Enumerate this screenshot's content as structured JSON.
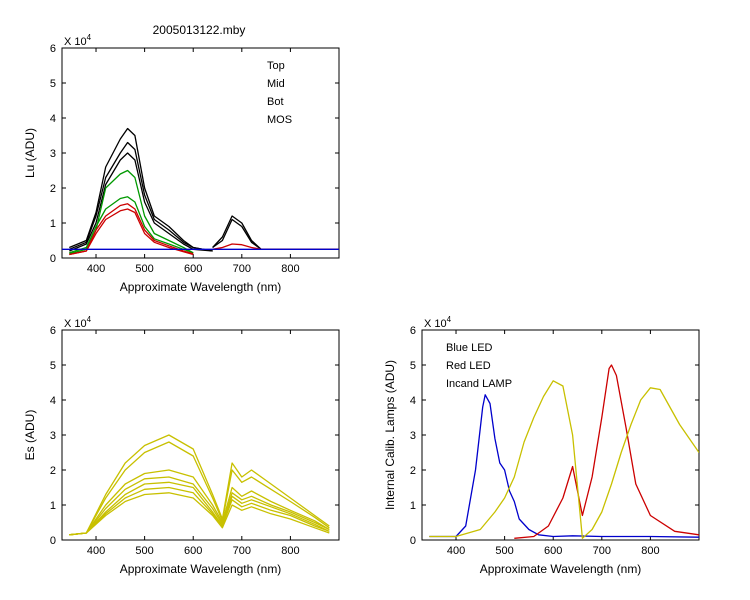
{
  "page_title": "2005013122.mby",
  "chart_data": [
    {
      "type": "line",
      "id": "lu",
      "xlabel": "Approximate Wavelength (nm)",
      "ylabel": "Lu (ADU)",
      "exponent_label": "X 10",
      "exponent_power": "4",
      "xlim": [
        330,
        900
      ],
      "ylim": [
        0,
        6
      ],
      "xticks": [
        400,
        500,
        600,
        700,
        800
      ],
      "yticks": [
        0,
        1,
        2,
        3,
        4,
        5,
        6
      ],
      "legend_position": "top-right",
      "legend": [
        {
          "label": "Top",
          "color": "#000000"
        },
        {
          "label": "Mid",
          "color": "#cc0000"
        },
        {
          "label": "Bot",
          "color": "#009900"
        },
        {
          "label": "MOS",
          "color": "#0000cc"
        }
      ],
      "series": [
        {
          "color": "#000000",
          "x": [
            345,
            380,
            400,
            420,
            450,
            465,
            480,
            500,
            520,
            550,
            580,
            600,
            640
          ],
          "y": [
            0.3,
            0.5,
            1.3,
            2.6,
            3.4,
            3.7,
            3.5,
            2.0,
            1.2,
            0.9,
            0.5,
            0.3,
            0.2
          ]
        },
        {
          "color": "#000000",
          "x": [
            345,
            380,
            400,
            420,
            450,
            465,
            480,
            500,
            520,
            550,
            580,
            600,
            640
          ],
          "y": [
            0.25,
            0.45,
            1.2,
            2.3,
            3.0,
            3.3,
            3.1,
            1.8,
            1.1,
            0.8,
            0.45,
            0.3,
            0.2
          ]
        },
        {
          "color": "#000000",
          "x": [
            345,
            380,
            400,
            420,
            450,
            465,
            480,
            500,
            520,
            550,
            580,
            600,
            640
          ],
          "y": [
            0.2,
            0.4,
            1.0,
            2.1,
            2.8,
            3.0,
            2.8,
            1.6,
            1.0,
            0.7,
            0.4,
            0.25,
            0.2
          ]
        },
        {
          "color": "#000000",
          "x": [
            640,
            660,
            680,
            700,
            720,
            740,
            900
          ],
          "y": [
            0.3,
            0.6,
            1.2,
            1.0,
            0.5,
            0.25,
            0.25
          ]
        },
        {
          "color": "#000000",
          "x": [
            640,
            660,
            680,
            700,
            720,
            740,
            900
          ],
          "y": [
            0.3,
            0.5,
            1.1,
            0.9,
            0.45,
            0.25,
            0.25
          ]
        },
        {
          "color": "#009900",
          "x": [
            345,
            380,
            400,
            420,
            450,
            465,
            480,
            500,
            520,
            550,
            580,
            600
          ],
          "y": [
            0.15,
            0.3,
            0.9,
            1.4,
            1.7,
            1.75,
            1.6,
            0.9,
            0.55,
            0.4,
            0.25,
            0.15
          ]
        },
        {
          "color": "#009900",
          "x": [
            345,
            380,
            400,
            420,
            450,
            465,
            480,
            500,
            520,
            550,
            580,
            600
          ],
          "y": [
            0.12,
            0.25,
            0.8,
            2.0,
            2.4,
            2.5,
            2.3,
            1.2,
            0.7,
            0.5,
            0.3,
            0.15
          ]
        },
        {
          "color": "#cc0000",
          "x": [
            345,
            380,
            400,
            420,
            450,
            465,
            480,
            500,
            520,
            550,
            580,
            600
          ],
          "y": [
            0.1,
            0.2,
            0.8,
            1.2,
            1.5,
            1.55,
            1.4,
            0.8,
            0.5,
            0.35,
            0.2,
            0.12
          ]
        },
        {
          "color": "#cc0000",
          "x": [
            345,
            380,
            400,
            420,
            450,
            465,
            480,
            500,
            520,
            550,
            580,
            600
          ],
          "y": [
            0.1,
            0.2,
            0.7,
            1.1,
            1.35,
            1.4,
            1.3,
            0.7,
            0.45,
            0.3,
            0.18,
            0.1
          ]
        },
        {
          "color": "#cc0000",
          "x": [
            640,
            660,
            680,
            700,
            720,
            740,
            900
          ],
          "y": [
            0.25,
            0.3,
            0.4,
            0.38,
            0.3,
            0.25,
            0.25
          ]
        },
        {
          "color": "#0000cc",
          "x": [
            330,
            900
          ],
          "y": [
            0.25,
            0.25
          ]
        }
      ]
    },
    {
      "type": "line",
      "id": "es",
      "xlabel": "Approximate Wavelength (nm)",
      "ylabel": "Es (ADU)",
      "exponent_label": "X 10",
      "exponent_power": "4",
      "xlim": [
        330,
        900
      ],
      "ylim": [
        0,
        6
      ],
      "xticks": [
        400,
        500,
        600,
        700,
        800
      ],
      "yticks": [
        0,
        1,
        2,
        3,
        4,
        5,
        6
      ],
      "series_color": "#c8c000",
      "series": [
        {
          "x": [
            345,
            380,
            420,
            460,
            500,
            550,
            600,
            640,
            660,
            680,
            700,
            720,
            760,
            800,
            850,
            880
          ],
          "y": [
            0.15,
            0.2,
            1.3,
            2.2,
            2.7,
            3.0,
            2.6,
            1.3,
            0.6,
            2.2,
            1.8,
            2.0,
            1.6,
            1.2,
            0.7,
            0.4
          ]
        },
        {
          "x": [
            345,
            380,
            420,
            460,
            500,
            550,
            600,
            640,
            660,
            680,
            700,
            720,
            760,
            800,
            850,
            880
          ],
          "y": [
            0.15,
            0.2,
            1.2,
            2.0,
            2.5,
            2.8,
            2.4,
            1.2,
            0.55,
            2.0,
            1.65,
            1.8,
            1.45,
            1.1,
            0.65,
            0.35
          ]
        },
        {
          "x": [
            345,
            380,
            420,
            460,
            500,
            550,
            600,
            640,
            660,
            680,
            700,
            720,
            760,
            800,
            850,
            880
          ],
          "y": [
            0.15,
            0.2,
            1.0,
            1.6,
            1.9,
            2.0,
            1.8,
            1.0,
            0.5,
            1.5,
            1.25,
            1.4,
            1.1,
            0.85,
            0.55,
            0.3
          ]
        },
        {
          "x": [
            345,
            380,
            420,
            460,
            500,
            550,
            600,
            640,
            660,
            680,
            700,
            720,
            760,
            800,
            850,
            880
          ],
          "y": [
            0.15,
            0.2,
            0.9,
            1.45,
            1.75,
            1.8,
            1.6,
            0.9,
            0.45,
            1.35,
            1.15,
            1.25,
            1.0,
            0.8,
            0.5,
            0.3
          ]
        },
        {
          "x": [
            345,
            380,
            420,
            460,
            500,
            550,
            600,
            640,
            660,
            680,
            700,
            720,
            760,
            800,
            850,
            880
          ],
          "y": [
            0.15,
            0.2,
            0.8,
            1.3,
            1.6,
            1.65,
            1.5,
            0.8,
            0.4,
            1.25,
            1.05,
            1.15,
            0.95,
            0.75,
            0.45,
            0.25
          ]
        },
        {
          "x": [
            345,
            380,
            420,
            460,
            500,
            550,
            600,
            640,
            660,
            680,
            700,
            720,
            760,
            800,
            850,
            880
          ],
          "y": [
            0.15,
            0.2,
            0.75,
            1.2,
            1.45,
            1.5,
            1.35,
            0.75,
            0.4,
            1.15,
            0.95,
            1.05,
            0.85,
            0.7,
            0.4,
            0.25
          ]
        },
        {
          "x": [
            345,
            380,
            420,
            460,
            500,
            550,
            600,
            640,
            660,
            680,
            700,
            720,
            760,
            800,
            850,
            880
          ],
          "y": [
            0.15,
            0.2,
            0.7,
            1.1,
            1.3,
            1.35,
            1.2,
            0.7,
            0.35,
            1.0,
            0.85,
            0.95,
            0.75,
            0.6,
            0.35,
            0.2
          ]
        }
      ]
    },
    {
      "type": "line",
      "id": "lamps",
      "xlabel": "Approximate Wavelength (nm)",
      "ylabel": "Internal Calib. Lamps (ADU)",
      "exponent_label": "X 10",
      "exponent_power": "4",
      "xlim": [
        330,
        900
      ],
      "ylim": [
        0,
        6
      ],
      "xticks": [
        400,
        500,
        600,
        700,
        800
      ],
      "yticks": [
        0,
        1,
        2,
        3,
        4,
        5,
        6
      ],
      "legend_position": "top-left",
      "series": [
        {
          "name": "Blue LED",
          "color": "#0000cc",
          "x": [
            345,
            400,
            420,
            440,
            455,
            460,
            470,
            480,
            490,
            500,
            510,
            520,
            530,
            550,
            570,
            600,
            640,
            700,
            800,
            900
          ],
          "y": [
            0.1,
            0.1,
            0.4,
            2.0,
            3.8,
            4.15,
            3.9,
            2.9,
            2.2,
            2.0,
            1.4,
            1.1,
            0.6,
            0.3,
            0.15,
            0.1,
            0.12,
            0.1,
            0.1,
            0.08
          ]
        },
        {
          "name": "Red LED",
          "color": "#cc0000",
          "x": [
            520,
            560,
            590,
            620,
            640,
            660,
            680,
            700,
            715,
            720,
            730,
            750,
            770,
            800,
            850,
            900
          ],
          "y": [
            0.05,
            0.1,
            0.4,
            1.2,
            2.1,
            0.7,
            1.8,
            3.5,
            4.9,
            5.0,
            4.7,
            3.2,
            1.6,
            0.7,
            0.25,
            0.15
          ]
        },
        {
          "name": "Incand LAMP",
          "color": "#c8c000",
          "x": [
            345,
            400,
            450,
            480,
            500,
            520,
            540,
            560,
            580,
            600,
            620,
            640,
            660,
            680,
            700,
            720,
            740,
            760,
            780,
            800,
            820,
            860,
            900
          ],
          "y": [
            0.1,
            0.1,
            0.3,
            0.8,
            1.2,
            1.8,
            2.8,
            3.5,
            4.1,
            4.55,
            4.4,
            3.0,
            0.05,
            0.3,
            0.8,
            1.6,
            2.5,
            3.3,
            4.0,
            4.35,
            4.3,
            3.3,
            2.5
          ]
        }
      ]
    }
  ]
}
